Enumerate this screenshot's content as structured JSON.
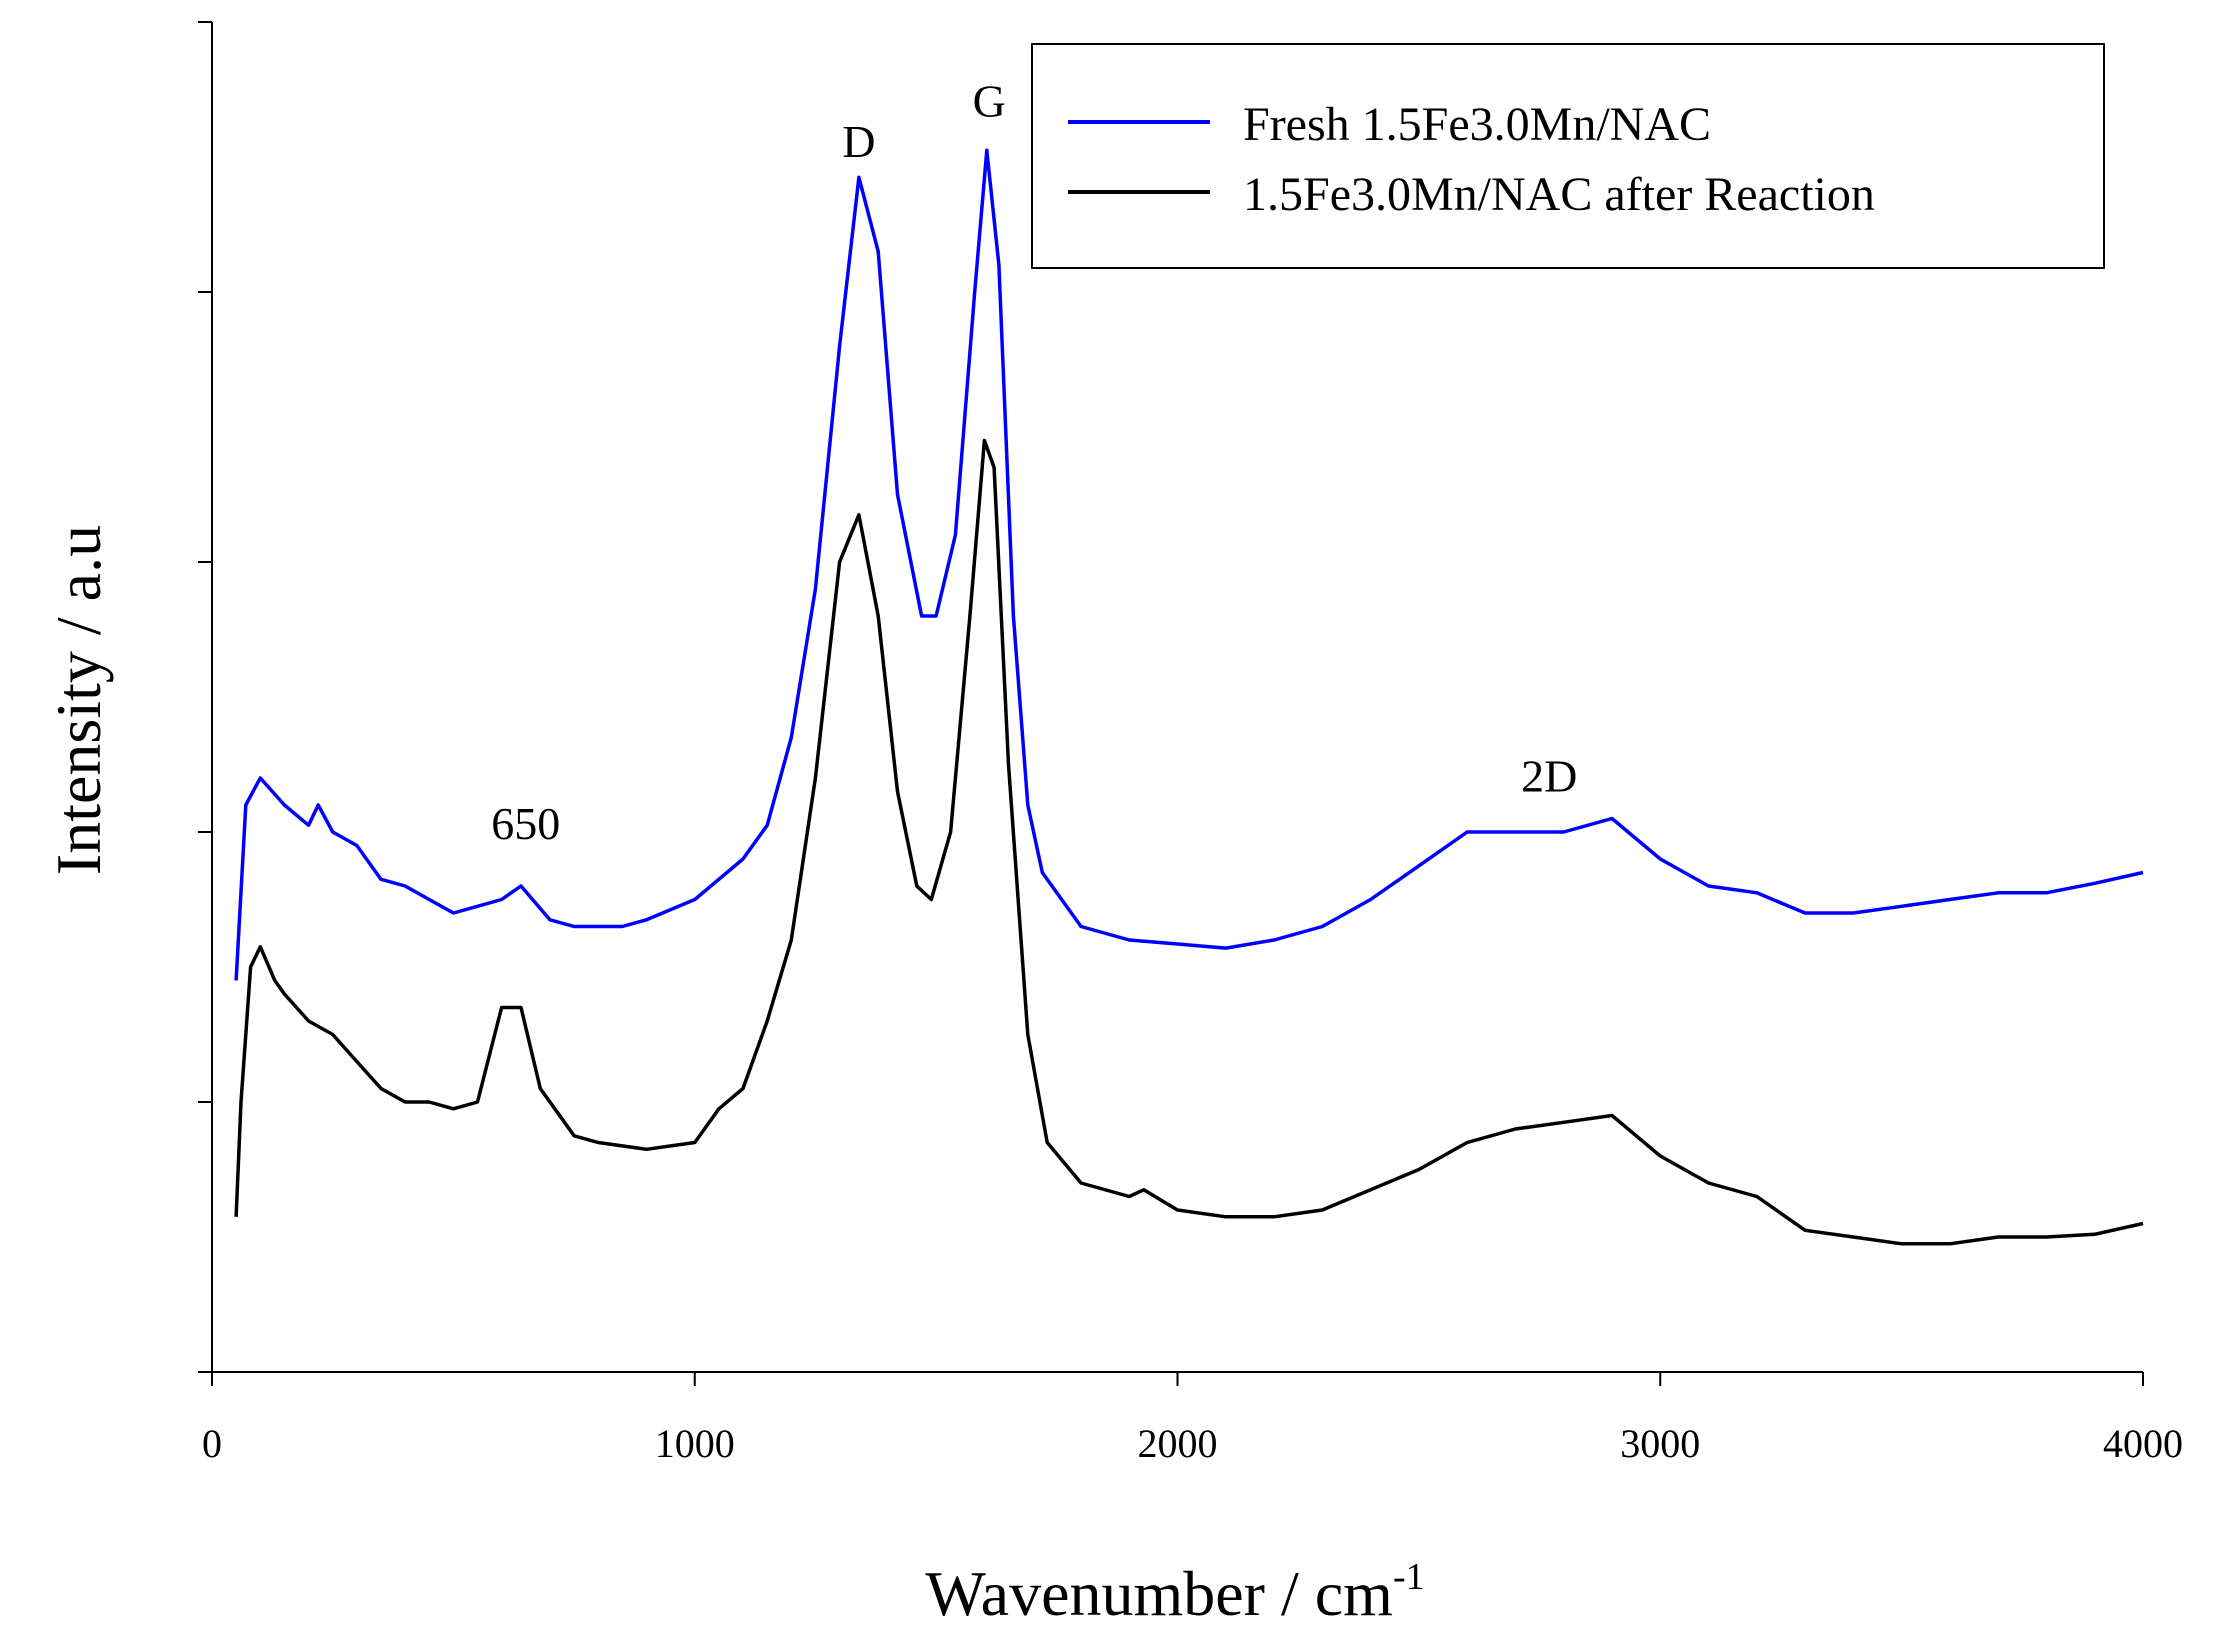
{
  "chart_data": {
    "type": "line",
    "title": "",
    "xlabel": "Wavenumber / cm",
    "xlabel_sup": "-1",
    "ylabel": "Intensity / a.u",
    "xlim": [
      0,
      4000
    ],
    "ylim": [
      0,
      10
    ],
    "xticks": [
      "0",
      "1000",
      "2000",
      "3000",
      "4000"
    ],
    "yticks_count": 5,
    "legend_position": "top-right",
    "annotations": [
      {
        "text": "D",
        "x": 1340,
        "y": 9.0
      },
      {
        "text": "G",
        "x": 1610,
        "y": 9.3
      },
      {
        "text": "650",
        "x": 650,
        "y": 3.95
      },
      {
        "text": "2D",
        "x": 2770,
        "y": 4.3
      }
    ],
    "series": [
      {
        "name": "Fresh 1.5Fe3.0Mn/NAC",
        "color": "#0000ff",
        "points": [
          [
            50,
            2.9
          ],
          [
            70,
            4.2
          ],
          [
            100,
            4.4
          ],
          [
            150,
            4.2
          ],
          [
            200,
            4.05
          ],
          [
            220,
            4.2
          ],
          [
            250,
            4.0
          ],
          [
            300,
            3.9
          ],
          [
            350,
            3.65
          ],
          [
            400,
            3.6
          ],
          [
            450,
            3.5
          ],
          [
            500,
            3.4
          ],
          [
            550,
            3.45
          ],
          [
            600,
            3.5
          ],
          [
            640,
            3.6
          ],
          [
            700,
            3.35
          ],
          [
            750,
            3.3
          ],
          [
            850,
            3.3
          ],
          [
            900,
            3.35
          ],
          [
            1000,
            3.5
          ],
          [
            1100,
            3.8
          ],
          [
            1150,
            4.05
          ],
          [
            1200,
            4.7
          ],
          [
            1250,
            5.8
          ],
          [
            1300,
            7.6
          ],
          [
            1340,
            8.85
          ],
          [
            1380,
            8.3
          ],
          [
            1420,
            6.5
          ],
          [
            1470,
            5.6
          ],
          [
            1500,
            5.6
          ],
          [
            1540,
            6.2
          ],
          [
            1580,
            8.0
          ],
          [
            1605,
            9.05
          ],
          [
            1630,
            8.2
          ],
          [
            1660,
            5.6
          ],
          [
            1690,
            4.2
          ],
          [
            1720,
            3.7
          ],
          [
            1800,
            3.3
          ],
          [
            1900,
            3.2
          ],
          [
            2000,
            3.17
          ],
          [
            2100,
            3.14
          ],
          [
            2200,
            3.2
          ],
          [
            2300,
            3.3
          ],
          [
            2400,
            3.5
          ],
          [
            2500,
            3.75
          ],
          [
            2600,
            4.0
          ],
          [
            2700,
            4.0
          ],
          [
            2800,
            4.0
          ],
          [
            2900,
            4.1
          ],
          [
            3000,
            3.8
          ],
          [
            3100,
            3.6
          ],
          [
            3200,
            3.55
          ],
          [
            3300,
            3.4
          ],
          [
            3400,
            3.4
          ],
          [
            3500,
            3.45
          ],
          [
            3600,
            3.5
          ],
          [
            3700,
            3.55
          ],
          [
            3800,
            3.55
          ],
          [
            3900,
            3.62
          ],
          [
            4000,
            3.7
          ]
        ]
      },
      {
        "name": "1.5Fe3.0Mn/NAC after Reaction",
        "color": "#000000",
        "points": [
          [
            50,
            1.15
          ],
          [
            60,
            2.0
          ],
          [
            80,
            3.0
          ],
          [
            100,
            3.15
          ],
          [
            130,
            2.9
          ],
          [
            150,
            2.8
          ],
          [
            200,
            2.6
          ],
          [
            250,
            2.5
          ],
          [
            300,
            2.3
          ],
          [
            350,
            2.1
          ],
          [
            400,
            2.0
          ],
          [
            450,
            2.0
          ],
          [
            500,
            1.95
          ],
          [
            550,
            2.0
          ],
          [
            600,
            2.7
          ],
          [
            640,
            2.7
          ],
          [
            680,
            2.1
          ],
          [
            750,
            1.75
          ],
          [
            800,
            1.7
          ],
          [
            900,
            1.65
          ],
          [
            1000,
            1.7
          ],
          [
            1050,
            1.95
          ],
          [
            1100,
            2.1
          ],
          [
            1150,
            2.6
          ],
          [
            1200,
            3.2
          ],
          [
            1250,
            4.4
          ],
          [
            1300,
            6.0
          ],
          [
            1340,
            6.35
          ],
          [
            1380,
            5.6
          ],
          [
            1420,
            4.3
          ],
          [
            1460,
            3.6
          ],
          [
            1490,
            3.5
          ],
          [
            1530,
            4.0
          ],
          [
            1570,
            5.6
          ],
          [
            1600,
            6.9
          ],
          [
            1620,
            6.7
          ],
          [
            1650,
            4.5
          ],
          [
            1690,
            2.5
          ],
          [
            1730,
            1.7
          ],
          [
            1800,
            1.4
          ],
          [
            1900,
            1.3
          ],
          [
            1930,
            1.35
          ],
          [
            2000,
            1.2
          ],
          [
            2100,
            1.15
          ],
          [
            2200,
            1.15
          ],
          [
            2300,
            1.2
          ],
          [
            2400,
            1.35
          ],
          [
            2500,
            1.5
          ],
          [
            2600,
            1.7
          ],
          [
            2700,
            1.8
          ],
          [
            2800,
            1.85
          ],
          [
            2900,
            1.9
          ],
          [
            3000,
            1.6
          ],
          [
            3100,
            1.4
          ],
          [
            3200,
            1.3
          ],
          [
            3300,
            1.05
          ],
          [
            3400,
            1.0
          ],
          [
            3500,
            0.95
          ],
          [
            3600,
            0.95
          ],
          [
            3700,
            1.0
          ],
          [
            3800,
            1.0
          ],
          [
            3900,
            1.02
          ],
          [
            4000,
            1.1
          ]
        ]
      }
    ]
  }
}
